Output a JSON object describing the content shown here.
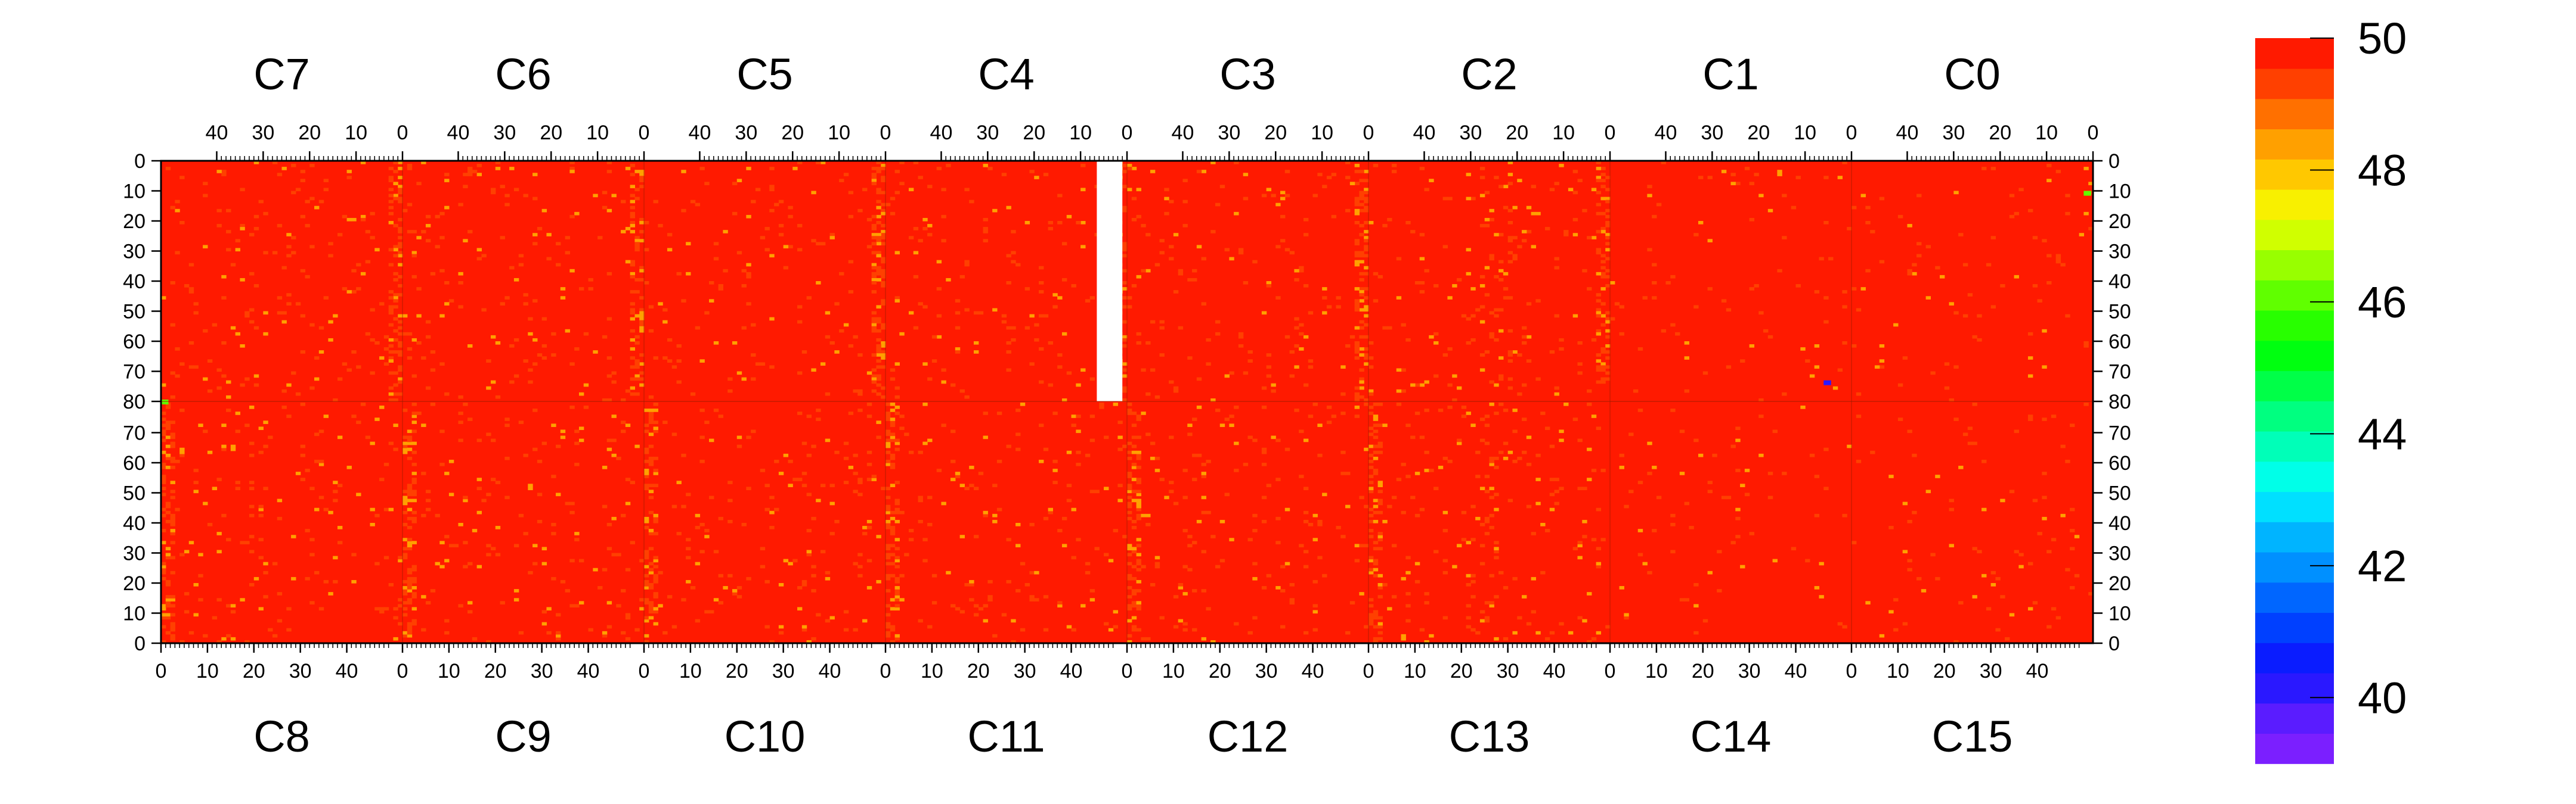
{
  "chart_data": {
    "type": "heatmap",
    "title": "",
    "xlabel": "",
    "ylabel": "",
    "top_chip_labels": [
      "C7",
      "C6",
      "C5",
      "C4",
      "C3",
      "C2",
      "C1",
      "C0"
    ],
    "bottom_chip_labels": [
      "C8",
      "C9",
      "C10",
      "C11",
      "C12",
      "C13",
      "C14",
      "C15"
    ],
    "columns_per_chip": 52,
    "rows_per_half": 80,
    "top_axis_ticks": [
      "40",
      "30",
      "20",
      "10",
      "0"
    ],
    "bottom_axis_ticks": [
      "0",
      "10",
      "20",
      "30",
      "40"
    ],
    "left_axis_ticks_top_half": [
      "0",
      "10",
      "20",
      "30",
      "40",
      "50",
      "60",
      "70",
      "80"
    ],
    "left_axis_ticks_bottom_half": [
      "70",
      "60",
      "50",
      "40",
      "30",
      "20",
      "10",
      "0"
    ],
    "z_range": [
      39,
      50
    ],
    "colorbar_tick_labels": [
      "40",
      "42",
      "44",
      "46",
      "48",
      "50"
    ],
    "dominant_value": 50,
    "typical_noisy_value": 49,
    "hot_columns_value_range": [
      46,
      49
    ],
    "missing_region": {
      "chip": "C4",
      "columns": [
        0,
        2
      ],
      "rows": [
        0,
        80
      ],
      "state": "no data"
    },
    "outlier_pixels": [
      {
        "chip": "C1",
        "column": 5,
        "row": 73,
        "value": 40
      },
      {
        "chip": "C8",
        "column": 0,
        "row": 80,
        "value": 46
      },
      {
        "chip": "C0",
        "column": 1,
        "row": 10,
        "value": 46
      }
    ],
    "colors": {
      "palette": [
        "#7B1FFF",
        "#5A1CFF",
        "#2A18FF",
        "#0A1CFF",
        "#0040FF",
        "#0066FF",
        "#0090FF",
        "#00B4FF",
        "#00E0FF",
        "#00FFE8",
        "#00FFB8",
        "#00FF80",
        "#00FF48",
        "#00FF10",
        "#28FF00",
        "#60FF00",
        "#98FF00",
        "#D0FF00",
        "#F8F000",
        "#FFC800",
        "#FFA000",
        "#FF7000",
        "#FF4000",
        "#FF1A00"
      ],
      "background": "#FF1A00",
      "hot_column_color": "#FF8800",
      "text": "#000000"
    }
  }
}
